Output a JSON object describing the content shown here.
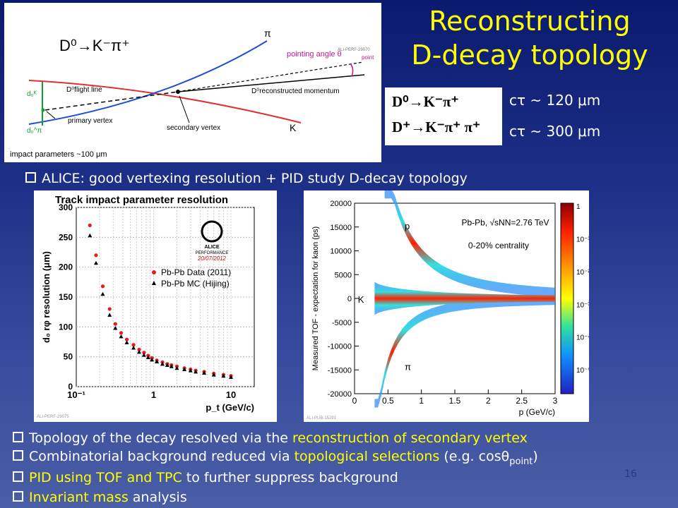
{
  "title_line1": "Reconstructing",
  "title_line2": "D-decay topology",
  "diagram": {
    "decay": "D⁰→K⁻π⁺",
    "label_pi": "π",
    "label_K": "K",
    "pointing_angle": "pointing angle θ",
    "pointing_sub": "point",
    "flight_line": "D⁰flight line",
    "reco_momentum": "D⁰reconstructed momentum",
    "primary_vertex": "primary vertex",
    "secondary_vertex": "secondary vertex",
    "impact": "impact parameters ~100 μm",
    "d0K": "d₀ᴷ",
    "d0pi": "d₀^π",
    "tag": "ALI-PERF-29070"
  },
  "decays": {
    "row1_formula": "D⁰→K⁻π⁺",
    "row2_formula": "D⁺→K⁻π⁺ π⁺",
    "row1_ctau": "cτ ~ 120 μm",
    "row2_ctau": "cτ ~ 300 μm"
  },
  "bullet_top": "ALICE: good vertexing resolution + PID  study D-decay topology",
  "bullets": [
    {
      "pre": "Topology of the decay resolved via the ",
      "hl": "reconstruction of secondary vertex",
      "post": ""
    },
    {
      "pre": "Combinatorial background reduced via ",
      "hl": "topological selections",
      "post": " (e.g. cosθ"
    },
    {
      "pre": "",
      "hl": "PID using TOF and TPC",
      "post": " to further suppress background"
    },
    {
      "pre": "",
      "hl": "Invariant mass",
      "post": " analysis"
    }
  ],
  "bullet2_sub": "point",
  "bullet2_close": ")",
  "page_number": "16",
  "chart_data": [
    {
      "type": "scatter",
      "title": "Track impact parameter resolution",
      "xlabel": "p_t (GeV/c)",
      "ylabel": "d₀ rφ resolution (μm)",
      "xscale": "log",
      "xlim": [
        0.1,
        20
      ],
      "ylim": [
        0,
        300
      ],
      "yticks": [
        "0",
        "50",
        "100",
        "150",
        "200",
        "250",
        "300"
      ],
      "xticks": [
        "10⁻¹",
        "1",
        "10"
      ],
      "legend_placement": "center-right",
      "logo_text": "ALICE",
      "logo_sub": "PERFORMANCE",
      "logo_date": "20/07/2012",
      "tag": "ALI-PERF-29075",
      "series": [
        {
          "name": "Pb-Pb Data (2011)",
          "color": "#e02020",
          "x": [
            0.15,
            0.18,
            0.22,
            0.27,
            0.32,
            0.38,
            0.45,
            0.55,
            0.65,
            0.75,
            0.85,
            0.95,
            1.1,
            1.3,
            1.5,
            1.7,
            2.0,
            2.5,
            3.0,
            3.5,
            4.5,
            6.0,
            8.0,
            10.0
          ],
          "y": [
            270,
            220,
            168,
            130,
            105,
            90,
            79,
            70,
            62,
            57,
            52,
            48,
            44,
            41,
            38,
            36,
            34,
            31,
            29,
            27,
            25,
            22,
            20,
            18
          ]
        },
        {
          "name": "Pb-Pb MC (Hijing)",
          "color": "#000000",
          "x": [
            0.15,
            0.18,
            0.22,
            0.27,
            0.32,
            0.38,
            0.45,
            0.55,
            0.65,
            0.75,
            0.85,
            0.95,
            1.1,
            1.3,
            1.5,
            1.7,
            2.0,
            2.5,
            3.0,
            3.5,
            4.5,
            6.0,
            8.0,
            10.0
          ],
          "y": [
            253,
            207,
            155,
            120,
            98,
            84,
            74,
            65,
            58,
            53,
            49,
            45,
            42,
            38,
            36,
            34,
            31,
            29,
            27,
            25,
            23,
            20,
            18,
            16
          ]
        }
      ]
    },
    {
      "type": "heatmap",
      "xlabel": "p (GeV/c)",
      "ylabel": "Measured TOF - expectation for kaon (ps)",
      "xlim": [
        0,
        3
      ],
      "ylim": [
        -20000,
        20000
      ],
      "xticks": [
        "0",
        "0.5",
        "1",
        "1.5",
        "2",
        "2.5",
        "3"
      ],
      "yticks": [
        "20000",
        "15000",
        "10000",
        "5000",
        "0",
        "-5000",
        "-10000",
        "-15000",
        "-20000"
      ],
      "zscale": "log",
      "zticks": [
        "1",
        "10⁻¹",
        "10⁻²",
        "10⁻³",
        "10⁻⁴",
        "10⁻⁵"
      ],
      "annotation1": "Pb-Pb, √sNN=2.76 TeV",
      "annotation2": "0-20% centrality",
      "band_labels": [
        "p",
        "K",
        "π"
      ],
      "tag": "ALI-PUB-15291"
    }
  ]
}
